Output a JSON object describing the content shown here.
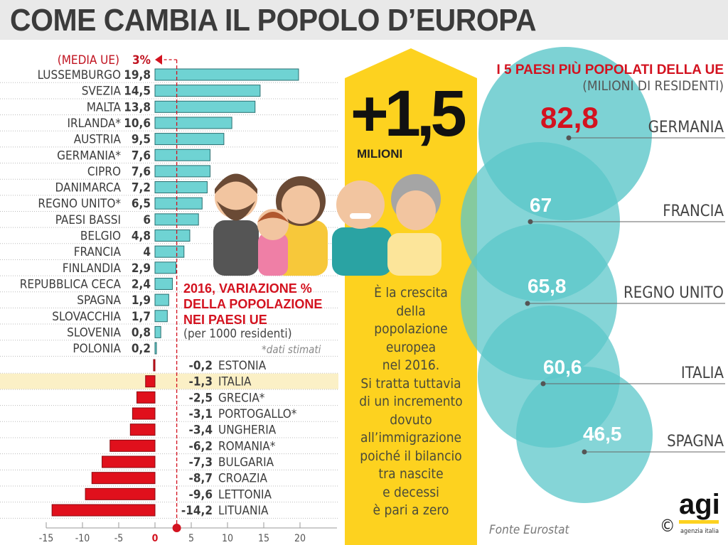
{
  "title": "COME CAMBIA IL POPOLO D’EUROPA",
  "chart_data": {
    "type": "bar",
    "orientation": "horizontal",
    "title": "2016, VARIAZIONE % DELLA POPOLAZIONE NEI PAESI UE",
    "subtitle": "(per 1000 residenti)",
    "note": "*dati stimati",
    "reference_line": {
      "label": "(MEDIA UE)",
      "value_label": "3%",
      "value": 3
    },
    "categories": [
      "LUSSEMBURGO",
      "SVEZIA",
      "MALTA",
      "IRLANDA*",
      "AUSTRIA",
      "GERMANIA*",
      "CIPRO",
      "DANIMARCA",
      "REGNO UNITO*",
      "PAESI BASSI",
      "BELGIO",
      "FRANCIA",
      "FINLANDIA",
      "REPUBBLICA CECA",
      "SPAGNA",
      "SLOVACCHIA",
      "SLOVENIA",
      "POLONIA",
      "ESTONIA",
      "ITALIA",
      "GRECIA*",
      "PORTOGALLO*",
      "UNGHERIA",
      "ROMANIA*",
      "BULGARIA",
      "CROAZIA",
      "LETTONIA",
      "LITUANIA"
    ],
    "values": [
      19.8,
      14.5,
      13.8,
      10.6,
      9.5,
      7.6,
      7.6,
      7.2,
      6.5,
      6,
      4.8,
      4,
      2.9,
      2.4,
      1.9,
      1.7,
      0.8,
      0.2,
      -0.2,
      -1.3,
      -2.5,
      -3.1,
      -3.4,
      -6.2,
      -7.3,
      -8.7,
      -9.6,
      -14.2
    ],
    "value_labels": [
      "19,8",
      "14,5",
      "13,8",
      "10,6",
      "9,5",
      "7,6",
      "7,6",
      "7,2",
      "6,5",
      "6",
      "4,8",
      "4",
      "2,9",
      "2,4",
      "1,9",
      "1,7",
      "0,8",
      "0,2",
      "-0,2",
      "-1,3",
      "-2,5",
      "-3,1",
      "-3,4",
      "-6,2",
      "-7,3",
      "-8,7",
      "-9,6",
      "-14,2"
    ],
    "highlight": "ITALIA",
    "xlim": [
      -15,
      25
    ],
    "xticks": [
      "-15",
      "-10",
      "-5",
      "0",
      "5",
      "10",
      "15",
      "20"
    ],
    "xtick_values": [
      -15,
      -10,
      -5,
      0,
      5,
      10,
      15,
      20
    ],
    "colors": {
      "positive": "#6fd3d3",
      "negative": "#e0101c",
      "highlight_row": "#fbf0c6",
      "accent": "#d3121f"
    }
  },
  "center_panel": {
    "big_number": "+1,5",
    "unit": "MILIONI",
    "text": "È la crescita della popolazione europea nel 2016. Si tratta tuttavia di un incremento dovuto all’immigrazione poiché il bilancio tra nascite e decessi è pari a zero",
    "text_lines": [
      "È la crescita",
      "della",
      "popolazione",
      "europea",
      "nel 2016.",
      "Si tratta tuttavia",
      "di un incremento",
      "dovuto",
      "all’immigrazione",
      "poiché il bilancio",
      "tra nascite",
      "e decessi",
      "è pari a zero"
    ],
    "color": "#fdd21f"
  },
  "right_panel": {
    "title": "I 5 PAESI PIÙ POPOLATI DELLA UE",
    "subtitle": "(MILIONI DI RESIDENTI)",
    "countries": [
      {
        "name": "GERMANIA",
        "value": 82.8,
        "label": "82,8"
      },
      {
        "name": "FRANCIA",
        "value": 67,
        "label": "67"
      },
      {
        "name": "REGNO UNITO",
        "value": 65.8,
        "label": "65,8"
      },
      {
        "name": "ITALIA",
        "value": 60.6,
        "label": "60,6"
      },
      {
        "name": "SPAGNA",
        "value": 46.5,
        "label": "46,5"
      }
    ],
    "circle_color": "#5cc7c9"
  },
  "source": "Fonte Eurostat",
  "logo": {
    "name": "agi",
    "tagline": "agenzia italia",
    "copyright": "©"
  }
}
